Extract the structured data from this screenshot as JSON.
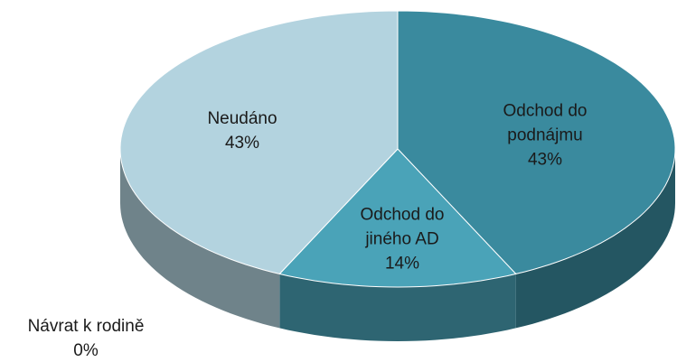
{
  "chart_data": {
    "type": "pie",
    "three_d": true,
    "categories": [
      "Odchod do podnájmu",
      "Odchod do jiného AD",
      "Návrat k rodině",
      "Neudáno"
    ],
    "values": [
      43,
      14,
      0,
      43
    ],
    "value_labels": [
      "43%",
      "14%",
      "0%",
      "43%"
    ],
    "colors": [
      "#3a8a9e",
      "#4aa3b8",
      "#6b8fa0",
      "#b3d3df"
    ]
  }
}
